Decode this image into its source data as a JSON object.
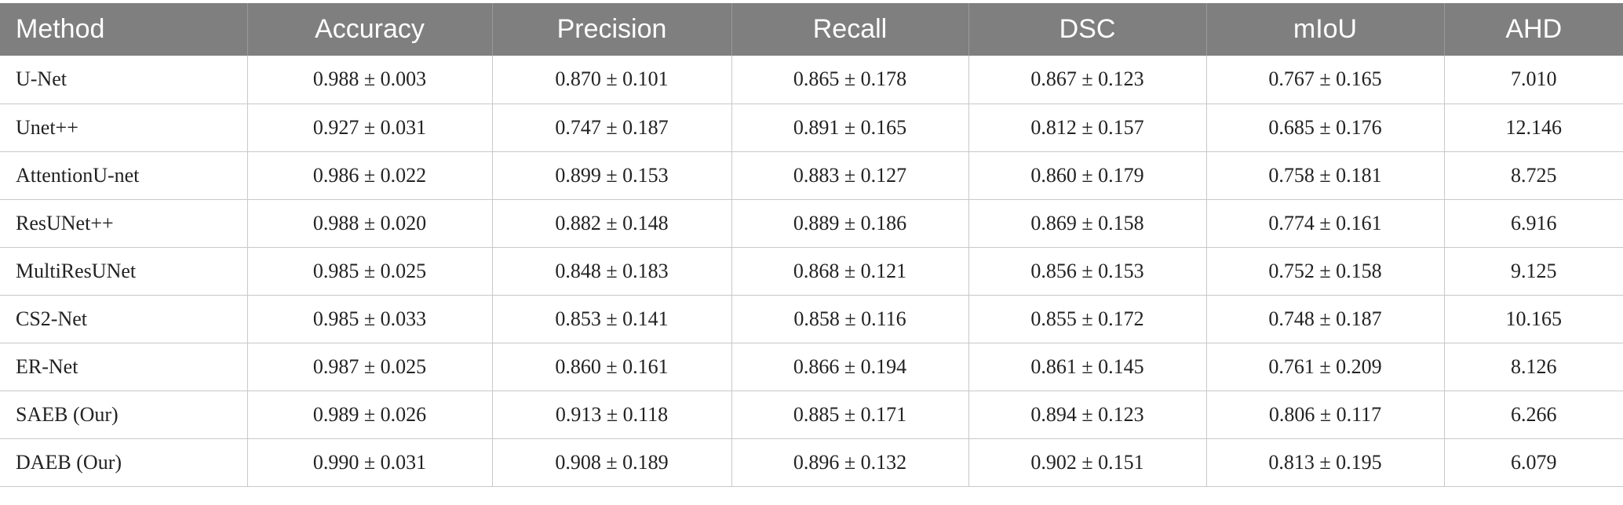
{
  "table": {
    "headers": [
      "Method",
      "Accuracy",
      "Precision",
      "Recall",
      "DSC",
      "mIoU",
      "AHD"
    ],
    "rows": [
      [
        "U-Net",
        "0.988 ± 0.003",
        "0.870 ± 0.101",
        "0.865 ± 0.178",
        "0.867 ± 0.123",
        "0.767 ± 0.165",
        "7.010"
      ],
      [
        "Unet++",
        "0.927 ± 0.031",
        "0.747 ± 0.187",
        "0.891 ± 0.165",
        "0.812 ± 0.157",
        "0.685 ± 0.176",
        "12.146"
      ],
      [
        "AttentionU-net",
        "0.986 ± 0.022",
        "0.899 ± 0.153",
        "0.883 ± 0.127",
        "0.860 ± 0.179",
        "0.758 ± 0.181",
        "8.725"
      ],
      [
        "ResUNet++",
        "0.988 ± 0.020",
        "0.882 ± 0.148",
        "0.889 ± 0.186",
        "0.869 ± 0.158",
        "0.774 ± 0.161",
        "6.916"
      ],
      [
        "MultiResUNet",
        "0.985 ± 0.025",
        "0.848 ± 0.183",
        "0.868 ± 0.121",
        "0.856 ± 0.153",
        "0.752 ± 0.158",
        "9.125"
      ],
      [
        "CS2-Net",
        "0.985 ± 0.033",
        "0.853 ± 0.141",
        "0.858 ± 0.116",
        "0.855 ± 0.172",
        "0.748 ± 0.187",
        "10.165"
      ],
      [
        "ER-Net",
        "0.987 ± 0.025",
        "0.860 ± 0.161",
        "0.866 ± 0.194",
        "0.861 ± 0.145",
        "0.761 ± 0.209",
        "8.126"
      ],
      [
        "SAEB (Our)",
        "0.989 ± 0.026",
        "0.913 ± 0.118",
        "0.885 ± 0.171",
        "0.894 ± 0.123",
        "0.806 ± 0.117",
        "6.266"
      ],
      [
        "DAEB (Our)",
        "0.990 ± 0.031",
        "0.908 ± 0.189",
        "0.896 ± 0.132",
        "0.902 ± 0.151",
        "0.813 ± 0.195",
        "6.079"
      ]
    ]
  },
  "colors": {
    "header_bg": "#7f7f7f",
    "header_text": "#ffffff",
    "body_text": "#222222",
    "grid_line": "#c8c8c8"
  }
}
